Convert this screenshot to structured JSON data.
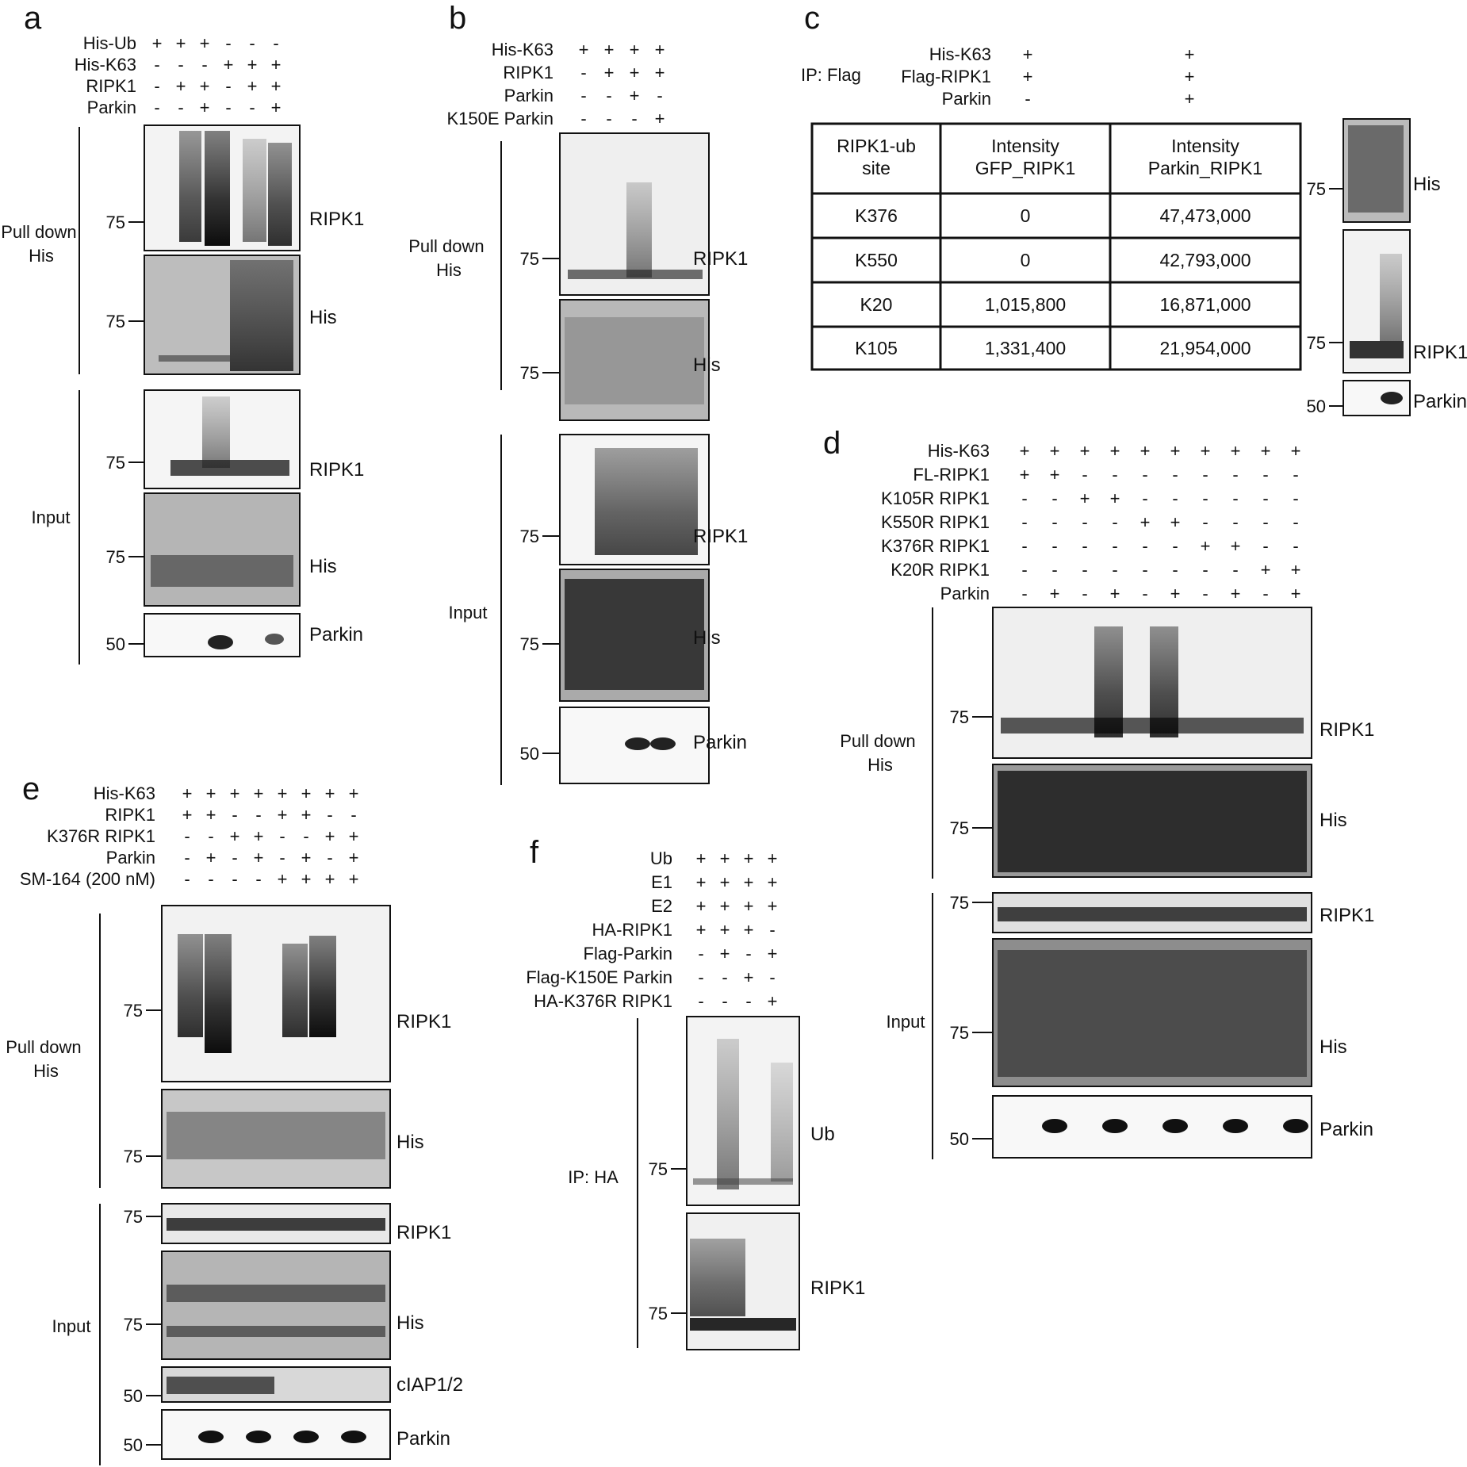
{
  "panels": {
    "a": {
      "letter": "a",
      "rows": [
        {
          "label": "His-Ub",
          "signs": [
            "+",
            "+",
            "+",
            "-",
            "-",
            "-"
          ]
        },
        {
          "label": "His-K63",
          "signs": [
            "-",
            "-",
            "-",
            "+",
            "+",
            "+"
          ]
        },
        {
          "label": "RIPK1",
          "signs": [
            "-",
            "+",
            "+",
            "-",
            "+",
            "+"
          ]
        },
        {
          "label": "Parkin",
          "signs": [
            "-",
            "-",
            "+",
            "-",
            "-",
            "+"
          ]
        }
      ],
      "groups": [
        "Pull down His",
        "Input"
      ],
      "blots": [
        {
          "band": "RIPK1",
          "marker": "75"
        },
        {
          "band": "His",
          "marker": "75"
        },
        {
          "band": "RIPK1",
          "marker": "75"
        },
        {
          "band": "His",
          "marker": "75"
        },
        {
          "band": "Parkin",
          "marker": "50"
        }
      ]
    },
    "b": {
      "letter": "b",
      "rows": [
        {
          "label": "His-K63",
          "signs": [
            "+",
            "+",
            "+",
            "+"
          ]
        },
        {
          "label": "RIPK1",
          "signs": [
            "-",
            "+",
            "+",
            "+"
          ]
        },
        {
          "label": "Parkin",
          "signs": [
            "-",
            "-",
            "+",
            "-"
          ]
        },
        {
          "label": "K150E Parkin",
          "signs": [
            "-",
            "-",
            "-",
            "+"
          ]
        }
      ],
      "groups": [
        "Pull down His",
        "Input"
      ],
      "blots": [
        {
          "band": "RIPK1",
          "marker": "75"
        },
        {
          "band": "His",
          "marker": "75"
        },
        {
          "band": "RIPK1",
          "marker": "75"
        },
        {
          "band": "His",
          "marker": "75"
        },
        {
          "band": "Parkin",
          "marker": "50"
        }
      ]
    },
    "c": {
      "letter": "c",
      "ip": "IP: Flag",
      "rows": [
        {
          "label": "His-K63",
          "signs": [
            "+",
            "+"
          ]
        },
        {
          "label": "Flag-RIPK1",
          "signs": [
            "+",
            "+"
          ]
        },
        {
          "label": "Parkin",
          "signs": [
            "-",
            "+"
          ]
        }
      ],
      "table": {
        "headers": [
          "RIPK1-ub site",
          "Intensity GFP_RIPK1",
          "Intensity Parkin_RIPK1"
        ],
        "rows": [
          [
            "K376",
            "0",
            "47,473,000"
          ],
          [
            "K550",
            "0",
            "42,793,000"
          ],
          [
            "K20",
            "1,015,800",
            "16,871,000"
          ],
          [
            "K105",
            "1,331,400",
            "21,954,000"
          ]
        ]
      },
      "blots": [
        {
          "band": "His",
          "marker": "75"
        },
        {
          "band": "RIPK1",
          "marker": "75"
        },
        {
          "band": "Parkin",
          "marker": "50"
        }
      ]
    },
    "d": {
      "letter": "d",
      "rows": [
        {
          "label": "His-K63",
          "signs": [
            "+",
            "+",
            "+",
            "+",
            "+",
            "+",
            "+",
            "+",
            "+",
            "+"
          ]
        },
        {
          "label": "FL-RIPK1",
          "signs": [
            "+",
            "+",
            "-",
            "-",
            "-",
            "-",
            "-",
            "-",
            "-",
            "-"
          ]
        },
        {
          "label": "K105R RIPK1",
          "signs": [
            "-",
            "-",
            "+",
            "+",
            "-",
            "-",
            "-",
            "-",
            "-",
            "-"
          ]
        },
        {
          "label": "K550R RIPK1",
          "signs": [
            "-",
            "-",
            "-",
            "-",
            "+",
            "+",
            "-",
            "-",
            "-",
            "-"
          ]
        },
        {
          "label": "K376R RIPK1",
          "signs": [
            "-",
            "-",
            "-",
            "-",
            "-",
            "-",
            "+",
            "+",
            "-",
            "-"
          ]
        },
        {
          "label": "K20R RIPK1",
          "signs": [
            "-",
            "-",
            "-",
            "-",
            "-",
            "-",
            "-",
            "-",
            "+",
            "+"
          ]
        },
        {
          "label": "Parkin",
          "signs": [
            "-",
            "+",
            "-",
            "+",
            "-",
            "+",
            "-",
            "+",
            "-",
            "+"
          ]
        }
      ],
      "groups": [
        "Pull down His",
        "Input"
      ],
      "blots": [
        {
          "band": "RIPK1",
          "marker": "75"
        },
        {
          "band": "His",
          "marker": "75"
        },
        {
          "band": "RIPK1",
          "marker": "75"
        },
        {
          "band": "His",
          "marker": "75"
        },
        {
          "band": "Parkin",
          "marker": "50"
        }
      ]
    },
    "e": {
      "letter": "e",
      "rows": [
        {
          "label": "His-K63",
          "signs": [
            "+",
            "+",
            "+",
            "+",
            "+",
            "+",
            "+",
            "+"
          ]
        },
        {
          "label": "RIPK1",
          "signs": [
            "+",
            "+",
            "-",
            "-",
            "+",
            "+",
            "-",
            "-"
          ]
        },
        {
          "label": "K376R RIPK1",
          "signs": [
            "-",
            "-",
            "+",
            "+",
            "-",
            "-",
            "+",
            "+"
          ]
        },
        {
          "label": "Parkin",
          "signs": [
            "-",
            "+",
            "-",
            "+",
            "-",
            "+",
            "-",
            "+"
          ]
        },
        {
          "label": "SM-164 (200 nM)",
          "signs": [
            "-",
            "-",
            "-",
            "-",
            "+",
            "+",
            "+",
            "+"
          ]
        }
      ],
      "groups": [
        "Pull down His",
        "Input"
      ],
      "blots": [
        {
          "band": "RIPK1",
          "marker": "75"
        },
        {
          "band": "His",
          "marker": "75"
        },
        {
          "band": "RIPK1",
          "marker": "75"
        },
        {
          "band": "His",
          "marker": "75"
        },
        {
          "band": "cIAP1/2",
          "marker": "50"
        },
        {
          "band": "Parkin",
          "marker": "50"
        }
      ]
    },
    "f": {
      "letter": "f",
      "rows": [
        {
          "label": "Ub",
          "signs": [
            "+",
            "+",
            "+",
            "+"
          ]
        },
        {
          "label": "E1",
          "signs": [
            "+",
            "+",
            "+",
            "+"
          ]
        },
        {
          "label": "E2",
          "signs": [
            "+",
            "+",
            "+",
            "+"
          ]
        },
        {
          "label": "HA-RIPK1",
          "signs": [
            "+",
            "+",
            "+",
            "-"
          ]
        },
        {
          "label": "Flag-Parkin",
          "signs": [
            "-",
            "+",
            "-",
            "+"
          ]
        },
        {
          "label": "Flag-K150E Parkin",
          "signs": [
            "-",
            "-",
            "+",
            "-"
          ]
        },
        {
          "label": "HA-K376R RIPK1",
          "signs": [
            "-",
            "-",
            "-",
            "+"
          ]
        }
      ],
      "ip": "IP: HA",
      "blots": [
        {
          "band": "Ub",
          "marker": "75"
        },
        {
          "band": "RIPK1",
          "marker": "75"
        }
      ]
    }
  }
}
